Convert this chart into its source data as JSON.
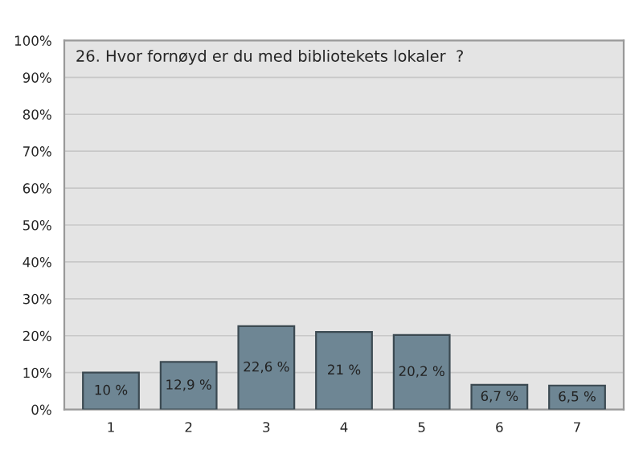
{
  "chart_data": {
    "type": "bar",
    "title": "26. Hvor fornøyd er du med bibliotekets lokaler  ?",
    "categories": [
      "1",
      "2",
      "3",
      "4",
      "5",
      "6",
      "7"
    ],
    "values": [
      10,
      12.9,
      22.6,
      21,
      20.2,
      6.7,
      6.5
    ],
    "value_labels": [
      "10 %",
      "12,9 %",
      "22,6 %",
      "21 %",
      "20,2 %",
      "6,7 %",
      "6,5 %"
    ],
    "color": "#6e8694",
    "ylim": [
      0,
      100
    ],
    "yticks": [
      {
        "value": 0,
        "label": "0%"
      },
      {
        "value": 10,
        "label": "10%"
      },
      {
        "value": 20,
        "label": "20%"
      },
      {
        "value": 30,
        "label": "30%"
      },
      {
        "value": 40,
        "label": "40%"
      },
      {
        "value": 50,
        "label": "50%"
      },
      {
        "value": 60,
        "label": "60%"
      },
      {
        "value": 70,
        "label": "70%"
      },
      {
        "value": 80,
        "label": "80%"
      },
      {
        "value": 90,
        "label": "90%"
      },
      {
        "value": 100,
        "label": "100%"
      }
    ],
    "grid": "y"
  }
}
